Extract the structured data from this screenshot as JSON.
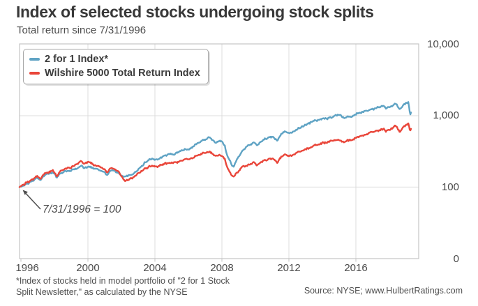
{
  "header": {
    "title": "Index of selected stocks undergoing stock splits",
    "subtitle": "Total return since 7/31/1996"
  },
  "chart_data": {
    "type": "line",
    "title": "Index of selected stocks undergoing stock splits",
    "subtitle": "Total return since 7/31/1996",
    "annotation": "7/31/1996 = 100",
    "x_axis": {
      "ticks": [
        "1996",
        "2000",
        "2004",
        "2008",
        "2012",
        "2016"
      ],
      "range": [
        1996.58,
        2019.63
      ]
    },
    "y_axis": {
      "scale": "log",
      "tick_labels": [
        "10,000",
        "1,000",
        "100",
        "0"
      ],
      "tick_values": [
        10000,
        1000,
        100,
        0
      ]
    },
    "legend_position": "top-left",
    "grid": true,
    "colors": {
      "blue": "#5FA3C4",
      "red": "#E9463A",
      "grid": "#DCDCDC",
      "border": "#C4C4C4",
      "text": "#4A4A4A",
      "title": "#383838"
    },
    "series": [
      {
        "name": "2 for 1 Index*",
        "color": "#5FA3C4",
        "points": [
          [
            1996.58,
            100
          ],
          [
            1996.8,
            105
          ],
          [
            1997.0,
            110
          ],
          [
            1997.3,
            118
          ],
          [
            1997.6,
            132
          ],
          [
            1997.8,
            128
          ],
          [
            1998.0,
            142
          ],
          [
            1998.3,
            152
          ],
          [
            1998.55,
            162
          ],
          [
            1998.78,
            136
          ],
          [
            1999.0,
            158
          ],
          [
            1999.3,
            168
          ],
          [
            1999.6,
            172
          ],
          [
            1999.9,
            185
          ],
          [
            2000.2,
            196
          ],
          [
            2000.45,
            185
          ],
          [
            2000.65,
            196
          ],
          [
            2000.9,
            188
          ],
          [
            2001.1,
            178
          ],
          [
            2001.4,
            172
          ],
          [
            2001.72,
            150
          ],
          [
            2001.95,
            166
          ],
          [
            2002.15,
            172
          ],
          [
            2002.4,
            158
          ],
          [
            2002.6,
            146
          ],
          [
            2002.78,
            138
          ],
          [
            2003.0,
            145
          ],
          [
            2003.3,
            152
          ],
          [
            2003.6,
            180
          ],
          [
            2004.0,
            230
          ],
          [
            2004.3,
            250
          ],
          [
            2004.6,
            240
          ],
          [
            2005.0,
            270
          ],
          [
            2005.4,
            290
          ],
          [
            2005.7,
            285
          ],
          [
            2006.0,
            320
          ],
          [
            2006.3,
            345
          ],
          [
            2006.55,
            330
          ],
          [
            2007.0,
            400
          ],
          [
            2007.4,
            455
          ],
          [
            2007.75,
            500
          ],
          [
            2008.0,
            450
          ],
          [
            2008.2,
            420
          ],
          [
            2008.45,
            445
          ],
          [
            2008.65,
            380
          ],
          [
            2008.8,
            280
          ],
          [
            2008.95,
            230
          ],
          [
            2009.17,
            190
          ],
          [
            2009.45,
            260
          ],
          [
            2009.7,
            320
          ],
          [
            2010.0,
            380
          ],
          [
            2010.35,
            420
          ],
          [
            2010.55,
            385
          ],
          [
            2010.9,
            450
          ],
          [
            2011.2,
            490
          ],
          [
            2011.45,
            510
          ],
          [
            2011.75,
            440
          ],
          [
            2012.0,
            560
          ],
          [
            2012.3,
            600
          ],
          [
            2012.55,
            580
          ],
          [
            2012.8,
            620
          ],
          [
            2013.0,
            660
          ],
          [
            2013.4,
            740
          ],
          [
            2013.7,
            800
          ],
          [
            2014.0,
            860
          ],
          [
            2014.4,
            910
          ],
          [
            2014.7,
            900
          ],
          [
            2015.0,
            950
          ],
          [
            2015.4,
            1020
          ],
          [
            2015.65,
            930
          ],
          [
            2015.9,
            1000
          ],
          [
            2016.12,
            950
          ],
          [
            2016.4,
            1060
          ],
          [
            2016.7,
            1110
          ],
          [
            2017.0,
            1170
          ],
          [
            2017.4,
            1250
          ],
          [
            2017.7,
            1300
          ],
          [
            2018.0,
            1400
          ],
          [
            2018.12,
            1260
          ],
          [
            2018.4,
            1340
          ],
          [
            2018.6,
            1430
          ],
          [
            2018.75,
            1480
          ],
          [
            2018.95,
            1240
          ],
          [
            2019.15,
            1390
          ],
          [
            2019.35,
            1500
          ],
          [
            2019.48,
            1530
          ],
          [
            2019.56,
            1040
          ],
          [
            2019.63,
            1130
          ]
        ]
      },
      {
        "name": "Wilshire 5000 Total Return Index",
        "color": "#E9463A",
        "points": [
          [
            1996.58,
            100
          ],
          [
            1996.8,
            108
          ],
          [
            1997.0,
            116
          ],
          [
            1997.3,
            124
          ],
          [
            1997.6,
            140
          ],
          [
            1997.8,
            134
          ],
          [
            1998.0,
            150
          ],
          [
            1998.3,
            162
          ],
          [
            1998.55,
            172
          ],
          [
            1998.78,
            142
          ],
          [
            1999.0,
            168
          ],
          [
            1999.3,
            180
          ],
          [
            1999.6,
            188
          ],
          [
            1999.9,
            208
          ],
          [
            2000.2,
            230
          ],
          [
            2000.45,
            215
          ],
          [
            2000.65,
            228
          ],
          [
            2000.9,
            210
          ],
          [
            2001.1,
            196
          ],
          [
            2001.4,
            188
          ],
          [
            2001.72,
            162
          ],
          [
            2001.95,
            180
          ],
          [
            2002.15,
            185
          ],
          [
            2002.4,
            168
          ],
          [
            2002.6,
            138
          ],
          [
            2002.78,
            120
          ],
          [
            2003.0,
            128
          ],
          [
            2003.3,
            136
          ],
          [
            2003.6,
            158
          ],
          [
            2004.0,
            185
          ],
          [
            2004.3,
            198
          ],
          [
            2004.6,
            192
          ],
          [
            2005.0,
            208
          ],
          [
            2005.4,
            218
          ],
          [
            2005.7,
            214
          ],
          [
            2006.0,
            232
          ],
          [
            2006.3,
            248
          ],
          [
            2006.55,
            242
          ],
          [
            2007.0,
            272
          ],
          [
            2007.4,
            298
          ],
          [
            2007.75,
            312
          ],
          [
            2008.0,
            290
          ],
          [
            2008.2,
            272
          ],
          [
            2008.45,
            282
          ],
          [
            2008.65,
            248
          ],
          [
            2008.8,
            188
          ],
          [
            2008.95,
            158
          ],
          [
            2009.17,
            138
          ],
          [
            2009.45,
            165
          ],
          [
            2009.7,
            188
          ],
          [
            2010.0,
            205
          ],
          [
            2010.35,
            220
          ],
          [
            2010.55,
            202
          ],
          [
            2010.9,
            230
          ],
          [
            2011.2,
            245
          ],
          [
            2011.45,
            252
          ],
          [
            2011.75,
            218
          ],
          [
            2012.0,
            268
          ],
          [
            2012.3,
            285
          ],
          [
            2012.55,
            276
          ],
          [
            2012.8,
            295
          ],
          [
            2013.0,
            308
          ],
          [
            2013.4,
            340
          ],
          [
            2013.7,
            362
          ],
          [
            2014.0,
            385
          ],
          [
            2014.4,
            412
          ],
          [
            2014.7,
            420
          ],
          [
            2015.0,
            438
          ],
          [
            2015.4,
            462
          ],
          [
            2015.65,
            428
          ],
          [
            2015.9,
            455
          ],
          [
            2016.12,
            442
          ],
          [
            2016.4,
            490
          ],
          [
            2016.7,
            520
          ],
          [
            2017.0,
            548
          ],
          [
            2017.4,
            588
          ],
          [
            2017.7,
            615
          ],
          [
            2018.0,
            660
          ],
          [
            2018.12,
            600
          ],
          [
            2018.4,
            640
          ],
          [
            2018.6,
            690
          ],
          [
            2018.75,
            715
          ],
          [
            2018.95,
            605
          ],
          [
            2019.15,
            685
          ],
          [
            2019.35,
            745
          ],
          [
            2019.48,
            765
          ],
          [
            2019.56,
            612
          ],
          [
            2019.63,
            672
          ]
        ]
      }
    ]
  },
  "footer": {
    "footnote_line1": "*Index of stocks held in model portfolio of \"2 for 1 Stock",
    "footnote_line2": "Split Newsletter,\" as calculated by the NYSE",
    "source": "Source: NYSE; www.HulbertRatings.com"
  }
}
